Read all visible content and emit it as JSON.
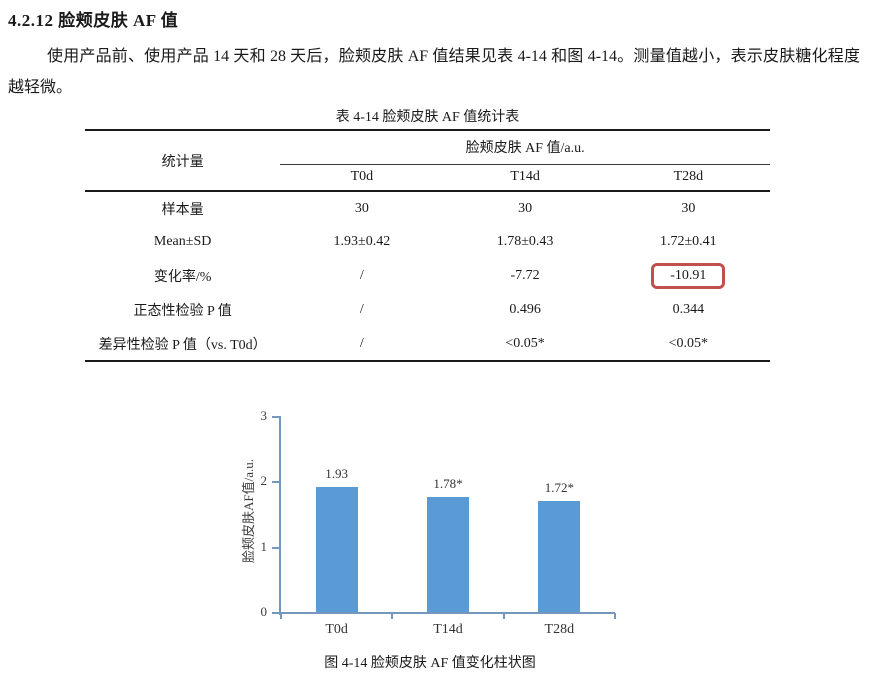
{
  "page": {
    "section_heading": "4.2.12  脸颊皮肤 AF 值",
    "paragraph": "使用产品前、使用产品 14 天和 28 天后，脸颊皮肤 AF 值结果见表 4-14 和图 4-14。测量值越小，表示皮肤糖化程度越轻微。"
  },
  "table": {
    "caption": "表 4-14 脸颊皮肤 AF 值统计表",
    "stat_col_header": "统计量",
    "group_header": "脸颊皮肤 AF 值/a.u.",
    "time_headers": [
      "T0d",
      "T14d",
      "T28d"
    ],
    "rows": [
      {
        "label": "样本量",
        "values": [
          "30",
          "30",
          "30"
        ]
      },
      {
        "label": "Mean±SD",
        "values": [
          "1.93±0.42",
          "1.78±0.43",
          "1.72±0.41"
        ]
      },
      {
        "label": "变化率/%",
        "values": [
          "/",
          "-7.72",
          "-10.91"
        ]
      },
      {
        "label": "正态性检验 P 值",
        "values": [
          "/",
          "0.496",
          "0.344"
        ]
      },
      {
        "label": "差异性检验 P 值（vs. T0d）",
        "values": [
          "/",
          "<0.05*",
          "<0.05*"
        ]
      }
    ],
    "highlight_color": "#c0504d",
    "highlighted_cell_value": "-10.91"
  },
  "chart_data": {
    "type": "bar",
    "categories": [
      "T0d",
      "T14d",
      "T28d"
    ],
    "values": [
      1.93,
      1.78,
      1.72
    ],
    "bar_labels": [
      "1.93",
      "1.78*",
      "1.72*"
    ],
    "title": "",
    "xlabel": "",
    "ylabel": "脸颊皮肤AF值/a.u.",
    "ylim": [
      0,
      3
    ],
    "yticks": [
      0,
      1,
      2,
      3
    ],
    "grid": false,
    "legend": false,
    "bar_color": "#5b9bd5",
    "axis_color": "#7497bd",
    "caption": "图 4-14 脸颊皮肤 AF 值变化柱状图"
  }
}
